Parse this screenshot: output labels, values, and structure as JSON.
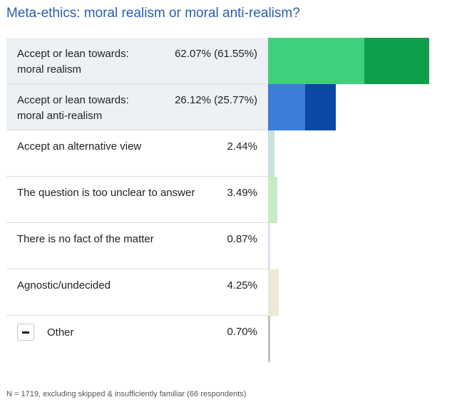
{
  "title": "Meta-ethics: moral realism or moral anti-realism?",
  "footnote": "N = 1719, excluding skipped & insufficiently familiar (66 respondents)",
  "chart_data": {
    "type": "bar",
    "orientation": "horizontal",
    "title": "Meta-ethics: moral realism or moral anti-realism?",
    "categories": [
      "Accept or lean towards:\nmoral realism",
      "Accept or lean towards:\nmoral anti-realism",
      "Accept an alternative view",
      "The question is too unclear to answer",
      "There is no fact of the matter",
      "Agnostic/undecided",
      "Other"
    ],
    "value_labels": [
      "62.07% (61.55%)",
      "26.12% (25.77%)",
      "2.44%",
      "3.49%",
      "0.87%",
      "4.25%",
      "0.70%"
    ],
    "values": [
      62.07,
      26.12,
      2.44,
      3.49,
      0.87,
      4.25,
      0.7
    ],
    "accept_values": [
      24.5,
      11.5,
      null,
      null,
      null,
      null,
      null
    ],
    "lean_values": [
      37.05,
      14.27,
      null,
      null,
      null,
      null,
      null
    ],
    "segment_colors": [
      [
        "#0f9f4a",
        "#40d07c"
      ],
      [
        "#0b48a6",
        "#3a7ddb"
      ],
      [
        "#c9e0e0"
      ],
      [
        "#c6ecc6"
      ],
      [
        "#d9dff2"
      ],
      [
        "#ece9d6"
      ],
      [
        "#c0c0c0"
      ]
    ],
    "xlim": [
      0,
      62.07
    ],
    "highlighted_rows": [
      0,
      1
    ],
    "grid": false,
    "legend": "none"
  }
}
